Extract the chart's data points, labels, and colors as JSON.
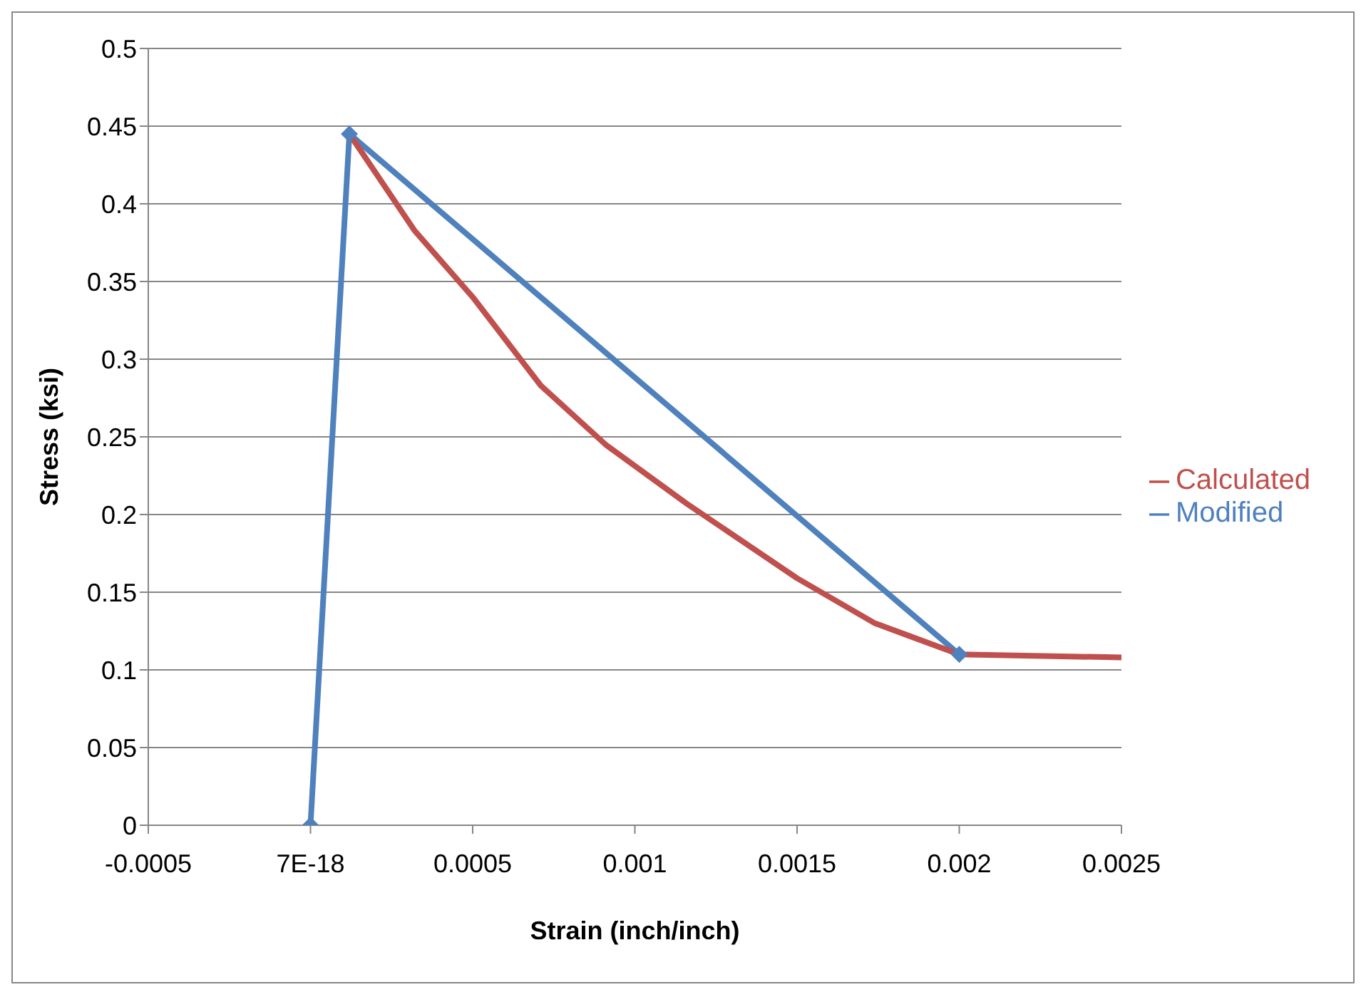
{
  "chart_data": {
    "type": "line",
    "xlabel": "Strain (inch/inch)",
    "ylabel": "Stress (ksi)",
    "xlim": [
      -0.0005,
      0.0025
    ],
    "xticks": [
      -0.0005,
      {
        "value": 0,
        "label": "7E-18"
      },
      0.0005,
      0.001,
      0.0015,
      0.002,
      0.0025
    ],
    "ylim": [
      0,
      0.5
    ],
    "yticks": [
      0,
      0.05,
      0.1,
      0.15,
      0.2,
      0.25,
      0.3,
      0.35,
      0.4,
      0.45,
      0.5
    ],
    "grid": "y",
    "legend": "right",
    "line_style": "solid",
    "series": [
      {
        "name": "Modified",
        "color": "#4f81bd",
        "marker": "diamond",
        "x": [
          0,
          0.00012,
          0.002
        ],
        "values": [
          0,
          0.445,
          0.11
        ]
      },
      {
        "name": "Calculated",
        "color": "#c0504d",
        "marker": "none",
        "x": [
          0.00012,
          0.00032,
          0.0005,
          0.00071,
          0.00091,
          0.00116,
          0.0015,
          0.00174,
          0.002,
          0.0025
        ],
        "values": [
          0.445,
          0.383,
          0.34,
          0.283,
          0.245,
          0.207,
          0.159,
          0.13,
          0.11,
          0.108
        ]
      }
    ]
  }
}
